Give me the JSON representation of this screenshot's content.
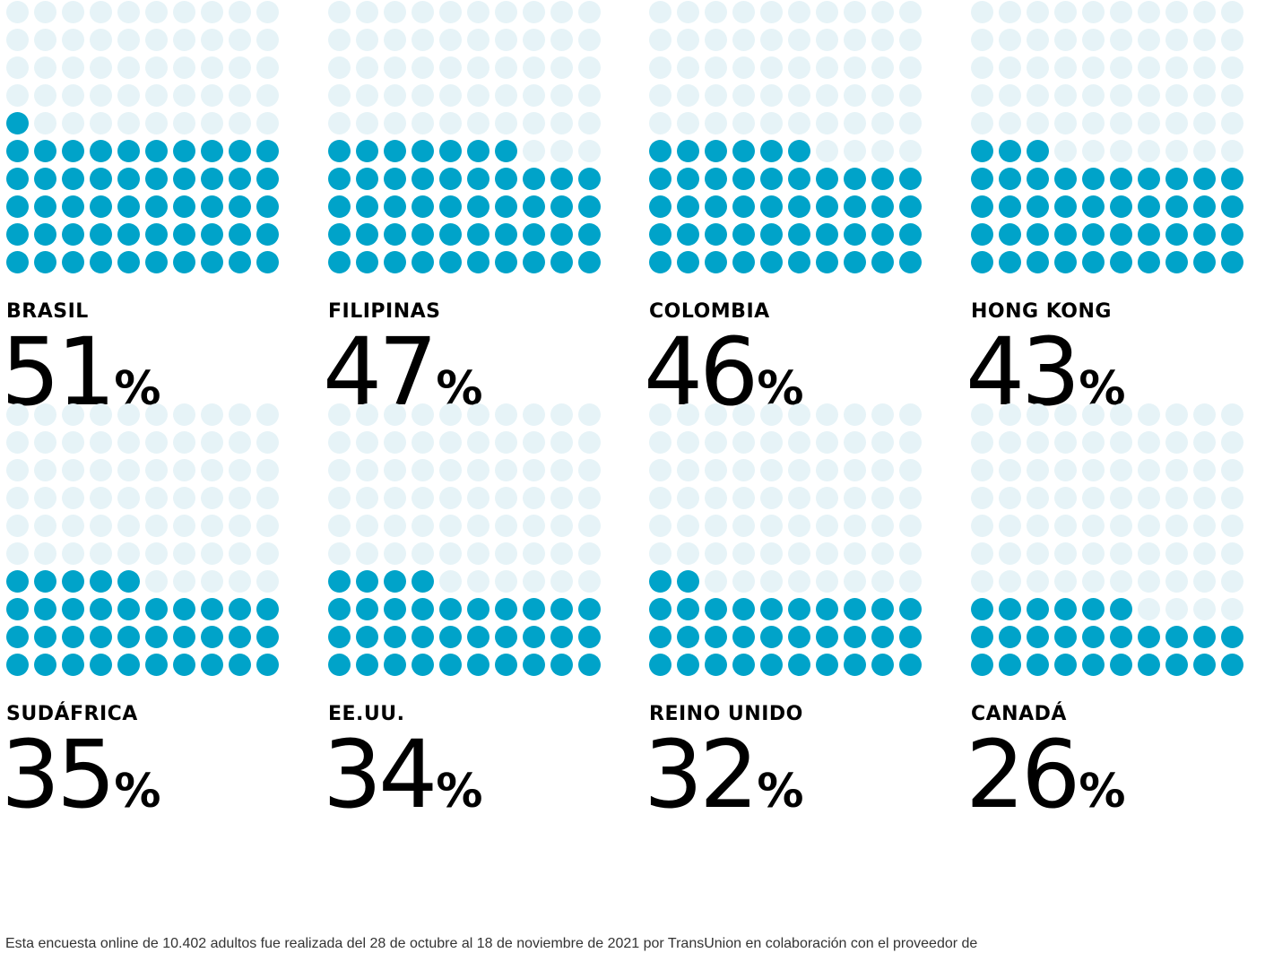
{
  "chart_data": {
    "type": "waffle",
    "units_per_chart": 100,
    "colors": {
      "filled": "#00a3c9",
      "empty": "#e6f3f7"
    },
    "panels": [
      {
        "country": "BRASIL",
        "value": 51,
        "unit": "%"
      },
      {
        "country": "FILIPINAS",
        "value": 47,
        "unit": "%"
      },
      {
        "country": "COLOMBIA",
        "value": 46,
        "unit": "%"
      },
      {
        "country": "HONG KONG",
        "value": 43,
        "unit": "%"
      },
      {
        "country": "SUDÁFRICA",
        "value": 35,
        "unit": "%"
      },
      {
        "country": "EE.UU.",
        "value": 34,
        "unit": "%"
      },
      {
        "country": "REINO UNIDO",
        "value": 32,
        "unit": "%"
      },
      {
        "country": "CANADÁ",
        "value": 26,
        "unit": "%"
      }
    ]
  },
  "footnote": "Esta encuesta online de 10.402 adultos fue realizada del 28 de octubre al 18 de noviembre de 2021 por TransUnion en colaboración con el proveedor de"
}
